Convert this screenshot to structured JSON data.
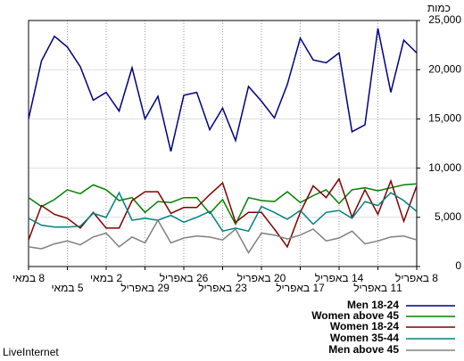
{
  "chart_data": {
    "type": "line",
    "y_axis_title": "כמות",
    "footer": "LiveInternet",
    "categories": [
      "8 במאי",
      null,
      null,
      "5 במאי",
      null,
      null,
      "2 במאי",
      null,
      null,
      "29 באפריל",
      null,
      null,
      "26 באפריל",
      null,
      null,
      "23 באפריל",
      null,
      null,
      "20 באפריל",
      null,
      null,
      "17 באפריל",
      null,
      null,
      "14 באפריל",
      null,
      null,
      "11 באפריל",
      null,
      null,
      "8 באפריל"
    ],
    "ylim": [
      0,
      25000
    ],
    "yticks": [
      0,
      {
        "value": 5000,
        "label": "5,000"
      },
      {
        "value": 10000,
        "label": "10,000"
      },
      {
        "value": 15000,
        "label": "15,000"
      },
      {
        "value": 20000,
        "label": "20,000"
      },
      {
        "value": 25000,
        "label": "25,000"
      }
    ],
    "grid": true,
    "legend": "bottom-right",
    "series": [
      {
        "name": "Men 18-24",
        "color": "#000080",
        "values": [
          15000,
          20900,
          23400,
          22300,
          20300,
          16900,
          17700,
          15800,
          20200,
          15000,
          17300,
          11700,
          17400,
          17700,
          13900,
          16100,
          12800,
          18300,
          16800,
          15100,
          18500,
          23200,
          21000,
          20700,
          21700,
          13700,
          14400,
          24200,
          17700,
          23000,
          21700
        ]
      },
      {
        "name": "Women above 45",
        "color": "#008000",
        "values": [
          7000,
          6100,
          6800,
          7800,
          7400,
          8300,
          7800,
          6700,
          7000,
          5500,
          6600,
          6500,
          7000,
          7000,
          5400,
          6800,
          4300,
          7000,
          6700,
          6600,
          7600,
          6500,
          7200,
          7800,
          6400,
          7800,
          8000,
          7700,
          8000,
          8300,
          8400
        ]
      },
      {
        "name": "Women 18-24",
        "color": "#800000",
        "values": [
          2700,
          6200,
          5300,
          4900,
          3900,
          5500,
          3900,
          3900,
          6700,
          7600,
          7600,
          5400,
          6000,
          6000,
          7300,
          8500,
          4500,
          5500,
          5500,
          3800,
          2000,
          5500,
          8200,
          7000,
          8900,
          5000,
          7800,
          5300,
          8700,
          4600,
          8200
        ]
      },
      {
        "name": "Women 35-44",
        "color": "#008080",
        "values": [
          4900,
          4200,
          4000,
          4000,
          4100,
          5400,
          5000,
          7500,
          4700,
          4900,
          4700,
          5200,
          4500,
          5000,
          5600,
          3600,
          3900,
          3600,
          6100,
          5500,
          4800,
          5700,
          4300,
          5500,
          5700,
          4900,
          6600,
          6200,
          7500,
          6700,
          5600
        ]
      },
      {
        "name": "Men above 45",
        "color": "#808080",
        "values": [
          2000,
          1800,
          2300,
          2600,
          2200,
          3000,
          3400,
          2000,
          3000,
          2400,
          4700,
          2400,
          2900,
          3100,
          3000,
          2700,
          3800,
          1400,
          3400,
          3200,
          2800,
          3200,
          3800,
          2600,
          2900,
          3600,
          2300,
          2600,
          3000,
          3100,
          2700
        ]
      }
    ]
  }
}
